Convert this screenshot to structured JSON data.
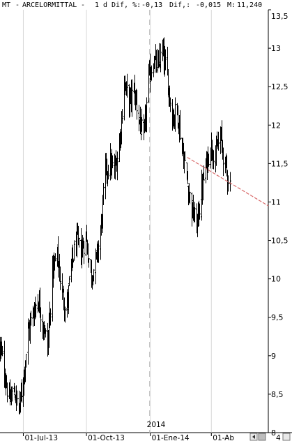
{
  "header": {
    "symbol": "MT",
    "name": "ARCELORMITTAL",
    "period": "1 d",
    "change_label": "Dif, %:",
    "change_pct": "-0,13",
    "change_abs_label": "Dif,:",
    "change_abs": "-0,015",
    "price_label": "M:",
    "price": "11,240"
  },
  "colors": {
    "bars": "#000000",
    "trendline": "#d96a6a",
    "divider": "#c0c0c0",
    "grid": "#d8d8d8"
  },
  "controls": {
    "scroll_icon": "scrollbar-icon",
    "left_icon": "scroll-left-icon",
    "right_icon": "scroll-right-icon",
    "right_label": "4"
  },
  "chart_data": {
    "type": "ohlc",
    "title": "",
    "y_ticks": [
      "13,5",
      "13",
      "12,5",
      "12",
      "11,5",
      "11",
      "10,5",
      "10",
      "9,5",
      "9",
      "8,5",
      "8"
    ],
    "y_tick_values": [
      13.5,
      13,
      12.5,
      12,
      11.5,
      11,
      10.5,
      10,
      9.5,
      9,
      8.5,
      8
    ],
    "ylim": [
      8,
      13.5
    ],
    "x_ticks": [
      "01-Jul-13",
      "01-Oct-13",
      "01-Ene-14",
      "01-Ab"
    ],
    "x_tick_dates": [
      "2013-07-01",
      "2013-10-01",
      "2014-01-02",
      "2014-04-01"
    ],
    "year_marker": "2014",
    "xlim": [
      "2013-05-28",
      "2014-06-23"
    ],
    "trendline": {
      "start": [
        "2014-02-25",
        11.58
      ],
      "end": [
        "2014-06-23",
        10.95
      ]
    },
    "last_bar_date": "2014-04-28",
    "close_points": [
      [
        "2013-05-28",
        9.1
      ],
      [
        "2013-06-03",
        8.8
      ],
      [
        "2013-06-10",
        8.4
      ],
      [
        "2013-06-17",
        8.55
      ],
      [
        "2013-06-24",
        8.3
      ],
      [
        "2013-07-01",
        8.7
      ],
      [
        "2013-07-08",
        9.3
      ],
      [
        "2013-07-15",
        9.55
      ],
      [
        "2013-07-22",
        9.75
      ],
      [
        "2013-07-29",
        9.45
      ],
      [
        "2013-08-05",
        9.1
      ],
      [
        "2013-08-12",
        10.1
      ],
      [
        "2013-08-19",
        10.3
      ],
      [
        "2013-08-26",
        9.8
      ],
      [
        "2013-09-02",
        9.6
      ],
      [
        "2013-09-09",
        10.15
      ],
      [
        "2013-09-16",
        10.5
      ],
      [
        "2013-09-23",
        10.35
      ],
      [
        "2013-09-30",
        10.55
      ],
      [
        "2013-10-07",
        10.05
      ],
      [
        "2013-10-14",
        10.2
      ],
      [
        "2013-10-21",
        10.6
      ],
      [
        "2013-10-28",
        11.4
      ],
      [
        "2013-11-04",
        11.5
      ],
      [
        "2013-11-11",
        11.4
      ],
      [
        "2013-11-18",
        11.75
      ],
      [
        "2013-11-25",
        12.55
      ],
      [
        "2013-12-02",
        12.3
      ],
      [
        "2013-12-09",
        12.45
      ],
      [
        "2013-12-16",
        12.1
      ],
      [
        "2013-12-23",
        11.8
      ],
      [
        "2013-12-30",
        12.6
      ],
      [
        "2014-01-06",
        12.85
      ],
      [
        "2014-01-13",
        12.75
      ],
      [
        "2014-01-20",
        12.95
      ],
      [
        "2014-01-27",
        12.6
      ],
      [
        "2014-02-03",
        12.1
      ],
      [
        "2014-02-10",
        12.2
      ],
      [
        "2014-02-17",
        11.7
      ],
      [
        "2014-02-24",
        11.3
      ],
      [
        "2014-03-03",
        10.9
      ],
      [
        "2014-03-10",
        10.7
      ],
      [
        "2014-03-17",
        11.1
      ],
      [
        "2014-03-24",
        11.45
      ],
      [
        "2014-03-31",
        11.75
      ],
      [
        "2014-04-07",
        11.6
      ],
      [
        "2014-04-14",
        11.85
      ],
      [
        "2014-04-21",
        11.45
      ],
      [
        "2014-04-28",
        11.24
      ]
    ]
  }
}
